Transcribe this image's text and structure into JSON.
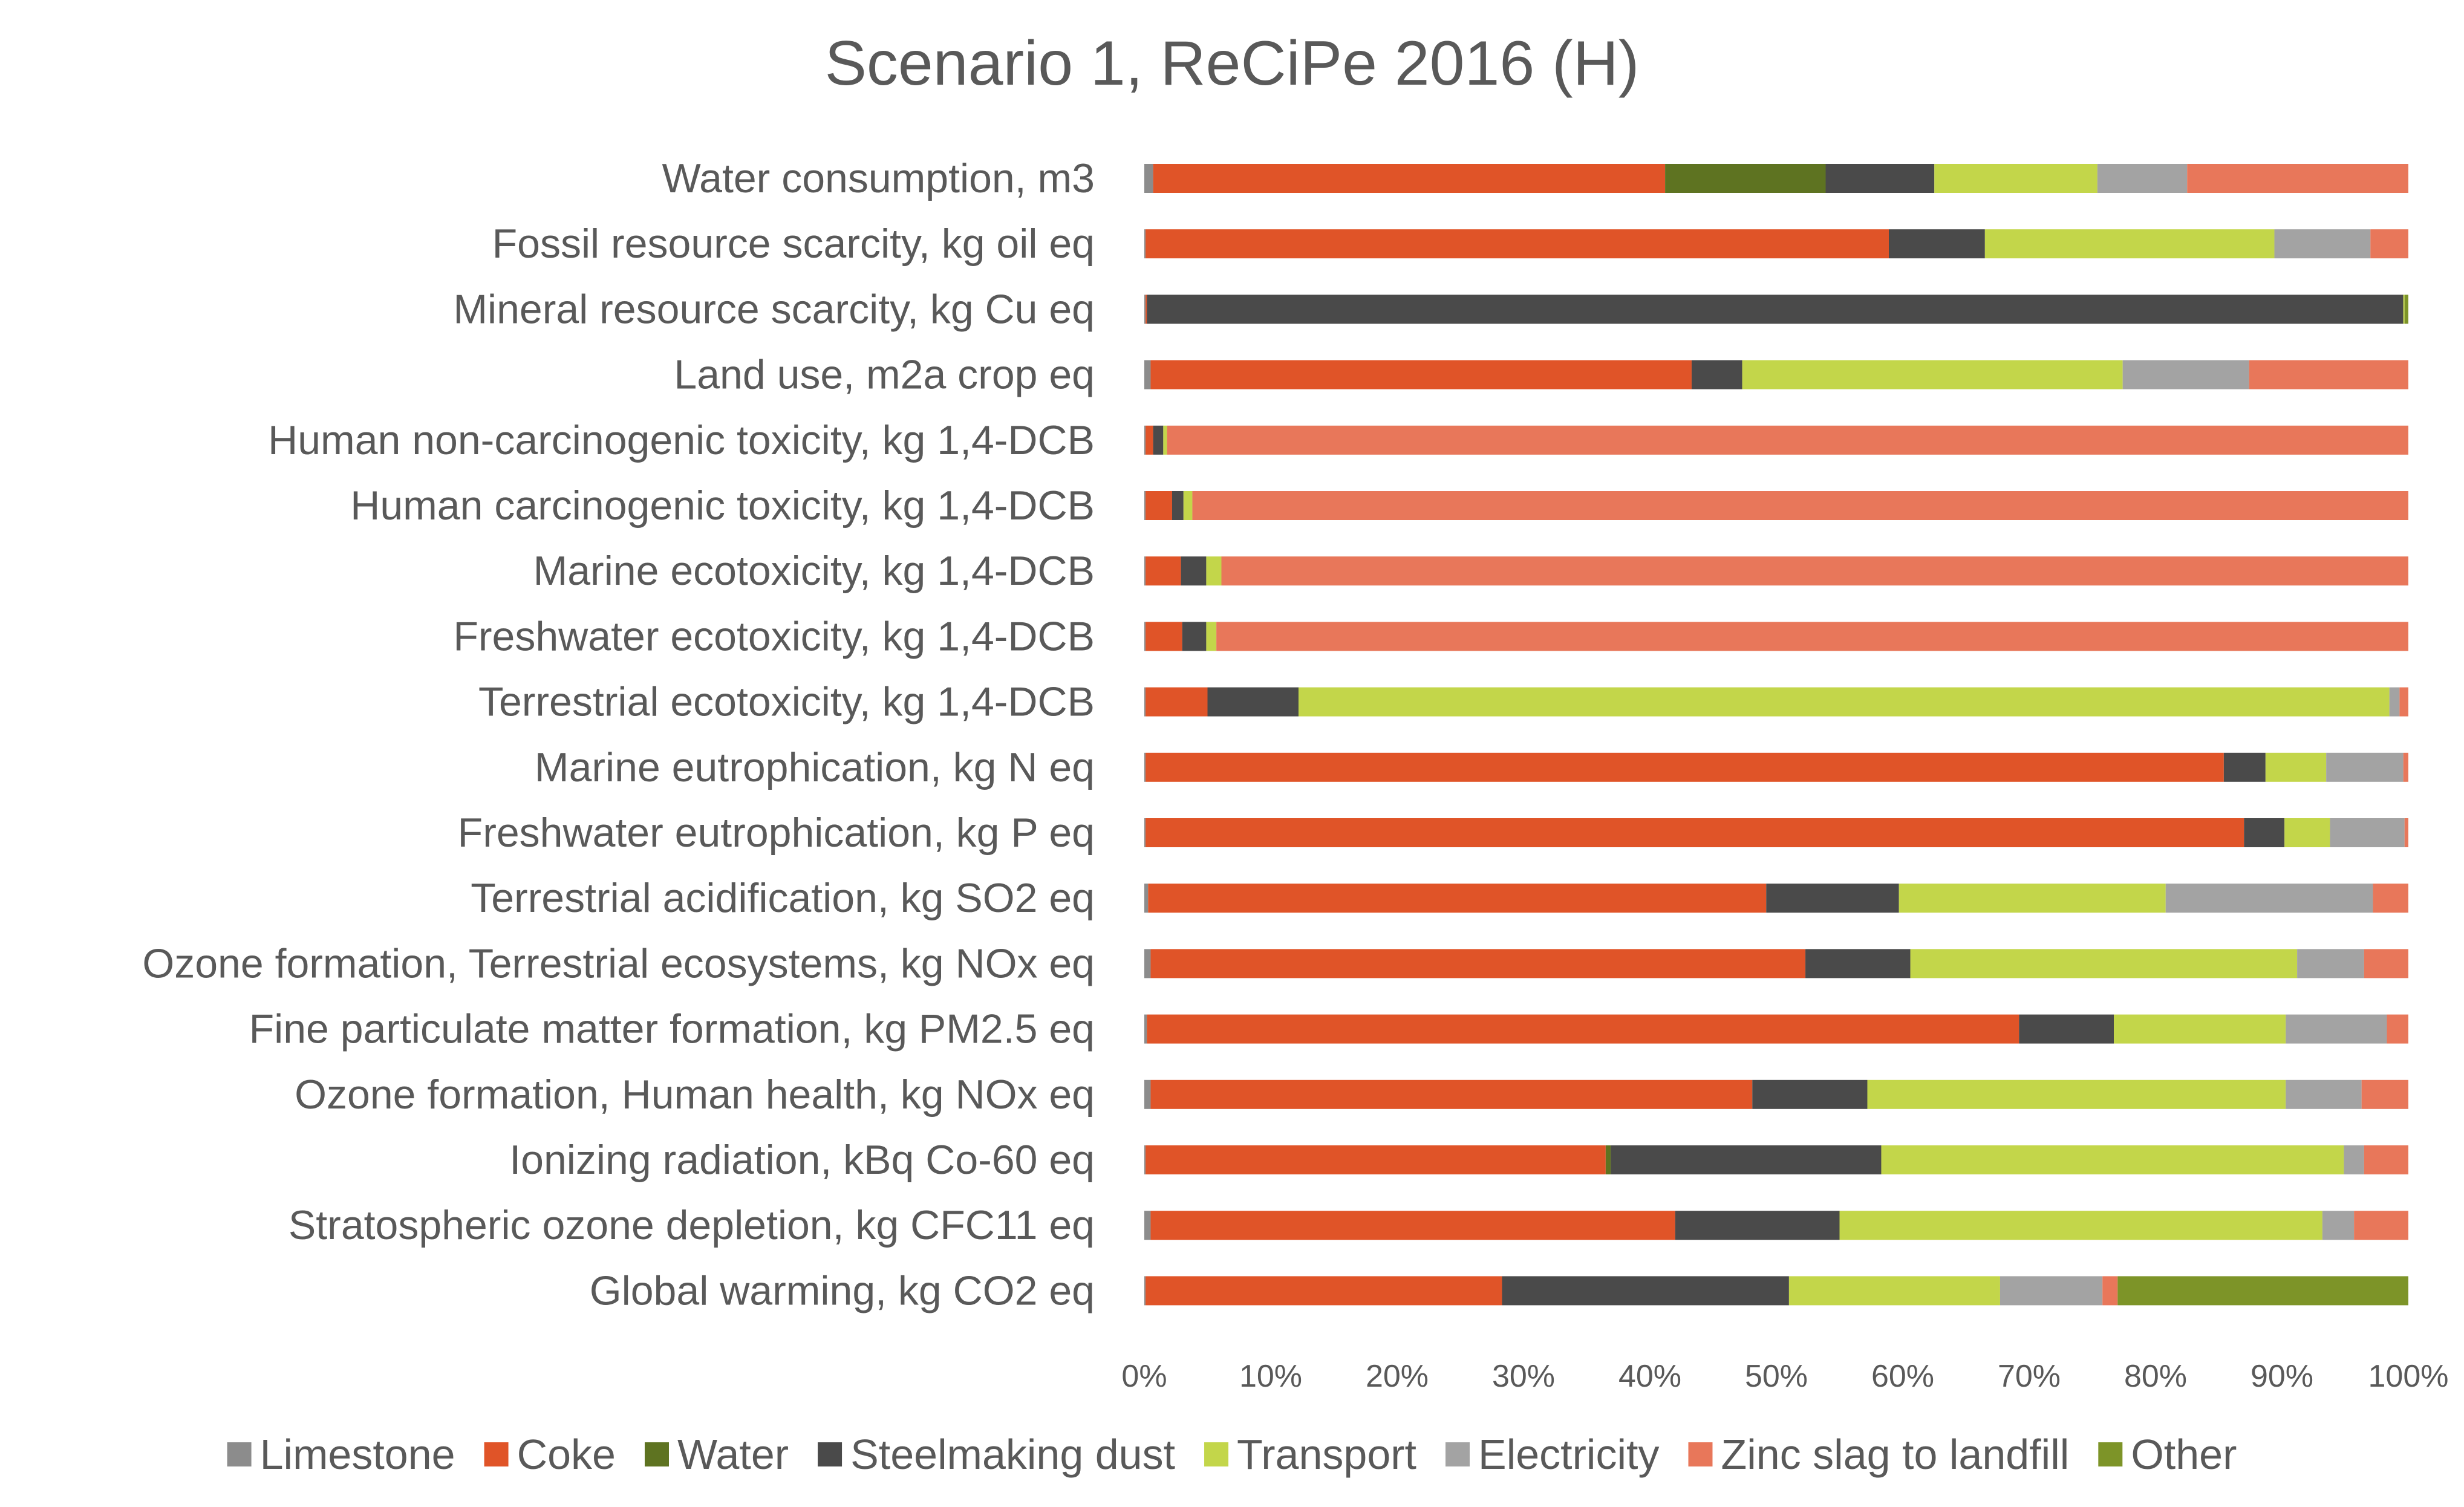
{
  "chart_data": {
    "type": "bar",
    "orientation": "horizontal",
    "stacked": "percent",
    "title": "Scenario 1, ReCiPe 2016 (H)",
    "xlabel": "",
    "ylabel": "",
    "xlim": [
      0,
      100
    ],
    "x_ticks": [
      "0%",
      "10%",
      "20%",
      "30%",
      "40%",
      "50%",
      "60%",
      "70%",
      "80%",
      "90%",
      "100%"
    ],
    "grid": false,
    "legend_position": "bottom",
    "categories": [
      "Water consumption, m3",
      "Fossil resource scarcity, kg oil eq",
      "Mineral resource scarcity, kg Cu eq",
      "Land use, m2a crop eq",
      "Human non-carcinogenic toxicity, kg 1,4-DCB",
      "Human carcinogenic toxicity, kg 1,4-DCB",
      "Marine ecotoxicity, kg 1,4-DCB",
      "Freshwater ecotoxicity, kg 1,4-DCB",
      "Terrestrial ecotoxicity, kg 1,4-DCB",
      "Marine eutrophication, kg N eq",
      "Freshwater eutrophication, kg P eq",
      "Terrestrial acidification, kg SO2 eq",
      "Ozone formation, Terrestrial ecosystems, kg NOx eq",
      "Fine particulate matter formation, kg PM2.5 eq",
      "Ozone formation, Human health, kg NOx eq",
      "Ionizing radiation, kBq Co-60 eq",
      "Stratospheric ozone depletion, kg CFC11 eq",
      "Global warming, kg CO2 eq"
    ],
    "series": [
      {
        "name": "Limestone",
        "color": "#8c8c8c",
        "values": [
          0.7,
          0.1,
          0.1,
          0.5,
          0.1,
          0.1,
          0.1,
          0.1,
          0.1,
          0.1,
          0.1,
          0.3,
          0.5,
          0.2,
          0.5,
          0.1,
          0.5,
          0.1
        ]
      },
      {
        "name": "Coke",
        "color": "#e05428",
        "values": [
          40.5,
          58.8,
          0.1,
          42.8,
          0.6,
          2.1,
          2.8,
          2.9,
          4.9,
          85.3,
          86.9,
          48.9,
          51.8,
          69.0,
          47.6,
          36.4,
          41.5,
          28.2
        ]
      },
      {
        "name": "Water",
        "color": "#5e7321",
        "values": [
          12.7,
          0.0,
          0.0,
          0.0,
          0.0,
          0.0,
          0.0,
          0.0,
          0.0,
          0.0,
          0.0,
          0.0,
          0.0,
          0.0,
          0.0,
          0.4,
          0.0,
          0.0
        ]
      },
      {
        "name": "Steelmaking dust",
        "color": "#4a4a4a",
        "values": [
          8.6,
          7.6,
          99.4,
          4.0,
          0.8,
          0.9,
          2.0,
          1.9,
          7.2,
          3.3,
          3.2,
          10.5,
          8.3,
          7.5,
          9.1,
          21.4,
          13.0,
          22.7
        ]
      },
      {
        "name": "Transport",
        "color": "#c3d64a",
        "values": [
          12.9,
          22.9,
          0.1,
          30.1,
          0.3,
          0.7,
          1.2,
          0.8,
          86.3,
          4.8,
          3.6,
          21.1,
          30.6,
          13.6,
          33.1,
          36.6,
          38.2,
          16.7
        ]
      },
      {
        "name": "Electricity",
        "color": "#a3a3a3",
        "values": [
          7.1,
          7.6,
          0.0,
          10.0,
          0.0,
          0.0,
          0.0,
          0.0,
          0.8,
          6.1,
          5.9,
          16.4,
          5.3,
          8.0,
          6.0,
          1.6,
          2.5,
          8.1
        ]
      },
      {
        "name": "Zinc slag to landfill",
        "color": "#e8775a",
        "values": [
          17.5,
          3.0,
          0.0,
          12.6,
          98.2,
          96.2,
          93.9,
          94.3,
          0.7,
          0.4,
          0.3,
          2.8,
          3.5,
          1.7,
          3.7,
          3.5,
          4.3,
          1.2
        ]
      },
      {
        "name": "Other",
        "color": "#7d9428",
        "values": [
          0.0,
          0.0,
          0.3,
          0.0,
          0.0,
          0.0,
          0.0,
          0.0,
          0.0,
          0.0,
          0.0,
          0.0,
          0.0,
          0.0,
          0.0,
          0.0,
          0.0,
          23.0
        ]
      }
    ]
  }
}
